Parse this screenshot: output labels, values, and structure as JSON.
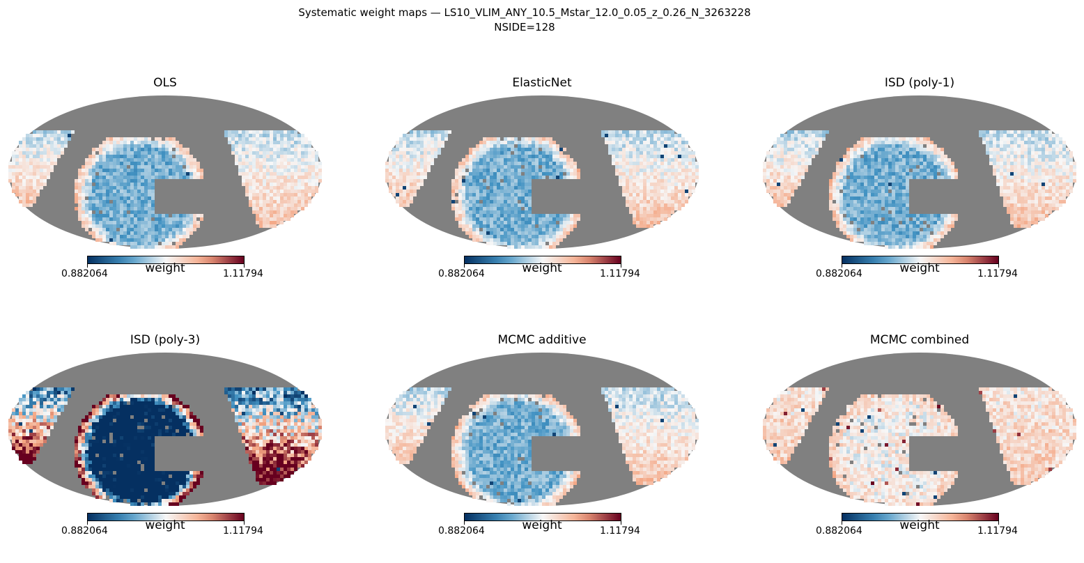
{
  "figure": {
    "suptitle_line1": "Systematic weight maps — LS10_VLIM_ANY_10.5_Mstar_12.0_0.05_z_0.26_N_3263228",
    "suptitle_line2": "NSIDE=128"
  },
  "colors": {
    "background": "#ffffff",
    "masked": "#808080",
    "cmap_low": "#053061",
    "cmap_mid": "#f7f7f7",
    "cmap_high": "#67001f"
  },
  "chart_data": [
    {
      "type": "heatmap",
      "projection": "mollweide",
      "title": "OLS",
      "colorbar_label": "weight",
      "vmin": "0.882064",
      "vmax": "1.11794",
      "cmap": "RdBu_r",
      "pattern": "mild"
    },
    {
      "type": "heatmap",
      "projection": "mollweide",
      "title": "ElasticNet",
      "colorbar_label": "weight",
      "vmin": "0.882064",
      "vmax": "1.11794",
      "cmap": "RdBu_r",
      "pattern": "mild"
    },
    {
      "type": "heatmap",
      "projection": "mollweide",
      "title": "ISD (poly-1)",
      "colorbar_label": "weight",
      "vmin": "0.882064",
      "vmax": "1.11794",
      "cmap": "RdBu_r",
      "pattern": "mild"
    },
    {
      "type": "heatmap",
      "projection": "mollweide",
      "title": "ISD (poly-3)",
      "colorbar_label": "weight",
      "vmin": "0.882064",
      "vmax": "1.11794",
      "cmap": "RdBu_r",
      "pattern": "strong"
    },
    {
      "type": "heatmap",
      "projection": "mollweide",
      "title": "MCMC additive",
      "colorbar_label": "weight",
      "vmin": "0.882064",
      "vmax": "1.11794",
      "cmap": "RdBu_r",
      "pattern": "mild"
    },
    {
      "type": "heatmap",
      "projection": "mollweide",
      "title": "MCMC combined",
      "colorbar_label": "weight",
      "vmin": "0.882064",
      "vmax": "1.11794",
      "cmap": "RdBu_r",
      "pattern": "combined"
    }
  ]
}
